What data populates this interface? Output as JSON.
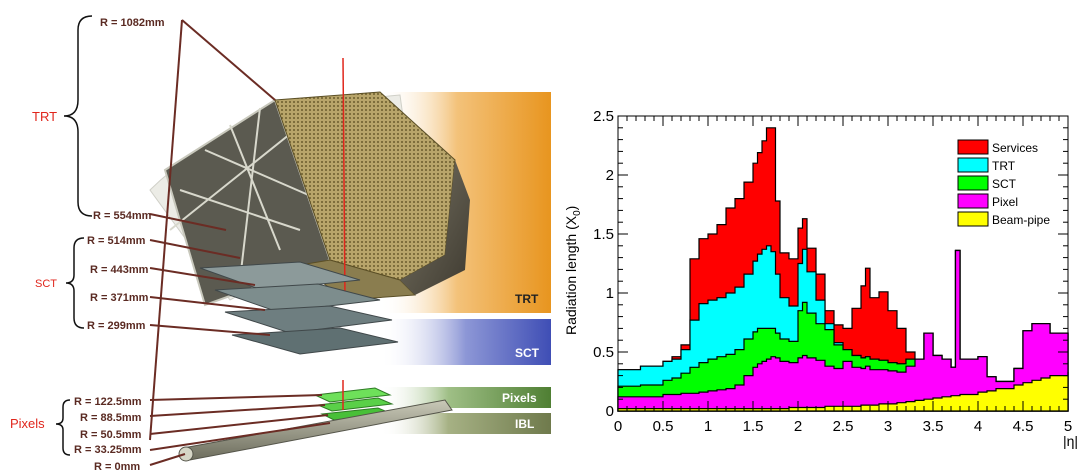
{
  "detector": {
    "groups": [
      {
        "label": "TRT"
      },
      {
        "label": "SCT"
      },
      {
        "label": "Pixels"
      }
    ],
    "radii": [
      "R = 1082mm",
      "R = 554mm",
      "R = 514mm",
      "R = 443mm",
      "R = 371mm",
      "R = 299mm",
      "R = 122.5mm",
      "R = 88.5mm",
      "R = 50.5mm",
      "R = 33.25mm",
      "R = 0mm"
    ],
    "bands": [
      "TRT",
      "SCT",
      "Pixels",
      "IBL"
    ]
  },
  "chart_data": {
    "type": "area",
    "stacked": true,
    "ylabel": "Radiation length (X",
    "ylabel_sub": "0",
    "ylabel_close": ")",
    "xlabel": "|η|",
    "xlim": [
      0,
      5
    ],
    "ylim": [
      0,
      2.5
    ],
    "x_ticks": [
      "0",
      "0.5",
      "1",
      "1.5",
      "2",
      "2.5",
      "3",
      "3.5",
      "4",
      "4.5",
      "5"
    ],
    "y_ticks": [
      "0",
      "0.5",
      "1",
      "1.5",
      "2",
      "2.5"
    ],
    "legend_position": "top-right",
    "x": [
      0,
      0.25,
      0.5,
      0.6,
      0.7,
      0.8,
      0.9,
      1.0,
      1.1,
      1.2,
      1.3,
      1.4,
      1.5,
      1.55,
      1.6,
      1.65,
      1.7,
      1.75,
      1.8,
      1.9,
      2.0,
      2.05,
      2.1,
      2.2,
      2.3,
      2.4,
      2.5,
      2.6,
      2.7,
      2.75,
      2.8,
      2.9,
      3.0,
      3.1,
      3.2,
      3.3,
      3.4,
      3.5,
      3.6,
      3.7,
      3.75,
      3.8,
      4.0,
      4.1,
      4.2,
      4.4,
      4.5,
      4.6,
      4.7,
      4.8,
      5.0
    ],
    "series": [
      {
        "name": "Beam-pipe",
        "color": "#ffff00",
        "values": [
          0.02,
          0.02,
          0.02,
          0.02,
          0.02,
          0.02,
          0.02,
          0.02,
          0.02,
          0.02,
          0.02,
          0.02,
          0.02,
          0.02,
          0.02,
          0.02,
          0.02,
          0.02,
          0.02,
          0.03,
          0.03,
          0.03,
          0.03,
          0.03,
          0.04,
          0.04,
          0.04,
          0.04,
          0.05,
          0.05,
          0.05,
          0.06,
          0.06,
          0.07,
          0.08,
          0.09,
          0.1,
          0.11,
          0.12,
          0.13,
          0.13,
          0.14,
          0.16,
          0.17,
          0.19,
          0.22,
          0.24,
          0.26,
          0.28,
          0.3,
          0.33
        ]
      },
      {
        "name": "Pixel",
        "color": "#ff00ff",
        "values": [
          0.1,
          0.1,
          0.12,
          0.12,
          0.13,
          0.13,
          0.14,
          0.15,
          0.16,
          0.17,
          0.2,
          0.28,
          0.35,
          0.38,
          0.4,
          0.42,
          0.44,
          0.43,
          0.4,
          0.38,
          0.42,
          0.44,
          0.42,
          0.4,
          0.34,
          0.32,
          0.38,
          0.33,
          0.31,
          0.33,
          0.3,
          0.29,
          0.28,
          0.26,
          0.3,
          0.35,
          0.56,
          0.36,
          0.32,
          0.24,
          1.23,
          0.3,
          0.3,
          0.12,
          0.06,
          0.14,
          0.44,
          0.48,
          0.46,
          0.36,
          0.2
        ]
      },
      {
        "name": "SCT",
        "color": "#00ff00",
        "values": [
          0.09,
          0.1,
          0.12,
          0.14,
          0.17,
          0.22,
          0.25,
          0.27,
          0.28,
          0.29,
          0.3,
          0.31,
          0.3,
          0.3,
          0.28,
          0.26,
          0.24,
          0.21,
          0.19,
          0.18,
          0.4,
          0.45,
          0.38,
          0.31,
          0.31,
          0.2,
          0.1,
          0.1,
          0.09,
          0.08,
          0.09,
          0.08,
          0.07,
          0.07,
          0.06,
          0,
          0,
          0,
          0,
          0,
          0,
          0,
          0,
          0,
          0,
          0,
          0,
          0,
          0,
          0,
          0
        ]
      },
      {
        "name": "TRT",
        "color": "#00ffff",
        "values": [
          0.14,
          0.16,
          0.16,
          0.16,
          0.2,
          0.4,
          0.5,
          0.5,
          0.5,
          0.52,
          0.53,
          0.55,
          0.6,
          0.63,
          0.67,
          0.7,
          0.65,
          0.5,
          0.35,
          0.3,
          0.4,
          0.45,
          0.35,
          0.2,
          0.05,
          0.02,
          0,
          0,
          0,
          0,
          0,
          0,
          0,
          0,
          0,
          0,
          0,
          0,
          0,
          0,
          0,
          0,
          0,
          0,
          0,
          0,
          0,
          0,
          0,
          0,
          0
        ]
      },
      {
        "name": "Services",
        "color": "#ff0000",
        "values": [
          0,
          0,
          0,
          0.02,
          0.04,
          0.52,
          0.55,
          0.56,
          0.62,
          0.72,
          0.75,
          0.78,
          0.83,
          0.86,
          0.92,
          1.0,
          1.05,
          0.62,
          0.38,
          0.4,
          0.3,
          0.26,
          0.2,
          0.22,
          0.11,
          0.15,
          0.18,
          0.4,
          0.61,
          0.75,
          0.52,
          0.58,
          0.44,
          0.3,
          0.06,
          0,
          0,
          0,
          0,
          0,
          0,
          0,
          0,
          0,
          0,
          0,
          0,
          0,
          0,
          0,
          0
        ]
      }
    ]
  }
}
